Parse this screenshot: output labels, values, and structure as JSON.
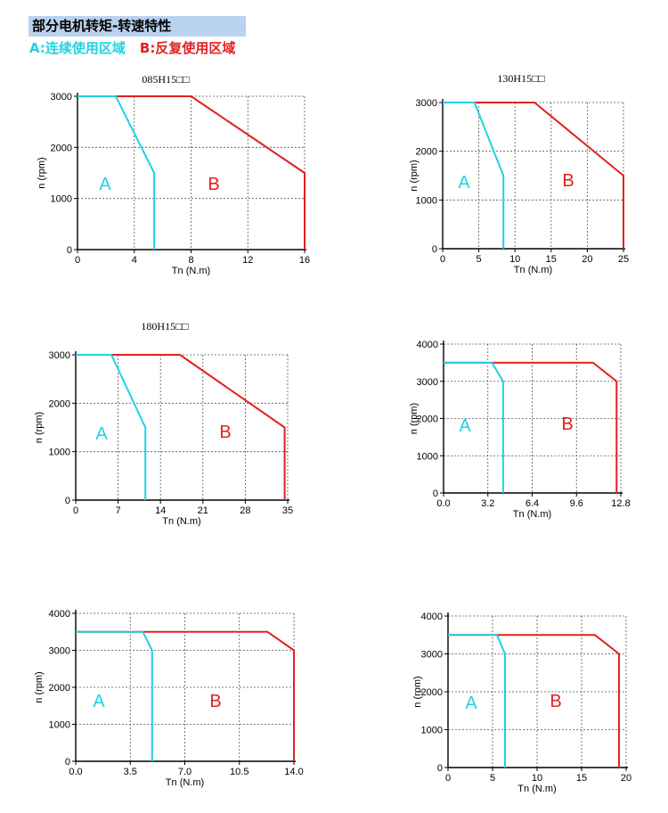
{
  "header": {
    "title": "部分电机转矩-转速特性",
    "legend_a": "A:连续使用区域",
    "legend_b": "B:反复使用区域"
  },
  "colors": {
    "region_a": "#1ed3e3",
    "region_b": "#e32020",
    "grid": "#555555",
    "title_bg": "#b9d2ee"
  },
  "chart_data": [
    {
      "type": "line",
      "title": "085H15□□",
      "xlabel": "Tn (N.m)",
      "ylabel": "n (rpm)",
      "xlim": [
        0,
        16
      ],
      "ylim": [
        0,
        3000
      ],
      "xticks": [
        0,
        4,
        8,
        12,
        16
      ],
      "xtick_labels": [
        "0",
        "4",
        "8",
        "12",
        "16"
      ],
      "yticks": [
        0,
        1000,
        2000,
        3000
      ],
      "ytick_labels": [
        "0",
        "1000",
        "2000",
        "3000"
      ],
      "grid": true,
      "region_labels": [
        "A",
        "B"
      ],
      "series": [
        {
          "name": "A",
          "points": [
            [
              0,
              3000
            ],
            [
              2.7,
              3000
            ],
            [
              5.4,
              1500
            ],
            [
              5.4,
              0
            ]
          ]
        },
        {
          "name": "B",
          "points": [
            [
              0,
              3000
            ],
            [
              8.0,
              3000
            ],
            [
              16.0,
              1500
            ],
            [
              16.0,
              0
            ]
          ]
        }
      ]
    },
    {
      "type": "line",
      "title": "130H15□□",
      "xlabel": "Tn (N.m)",
      "ylabel": "n (rpm)",
      "xlim": [
        0,
        25
      ],
      "ylim": [
        0,
        3000
      ],
      "xticks": [
        0,
        5,
        10,
        15,
        20,
        25
      ],
      "xtick_labels": [
        "0",
        "5",
        "10",
        "15",
        "20",
        "25"
      ],
      "yticks": [
        0,
        1000,
        2000,
        3000
      ],
      "ytick_labels": [
        "0",
        "1000",
        "2000",
        "3000"
      ],
      "grid": true,
      "region_labels": [
        "A",
        "B"
      ],
      "series": [
        {
          "name": "A",
          "points": [
            [
              0,
              3000
            ],
            [
              4.4,
              3000
            ],
            [
              8.4,
              1500
            ],
            [
              8.4,
              0
            ]
          ]
        },
        {
          "name": "B",
          "points": [
            [
              0,
              3000
            ],
            [
              12.7,
              3000
            ],
            [
              25.0,
              1500
            ],
            [
              25.0,
              0
            ]
          ]
        }
      ]
    },
    {
      "type": "line",
      "title": "180H15□□",
      "xlabel": "Tn (N.m)",
      "ylabel": "n (rpm)",
      "xlim": [
        0,
        35
      ],
      "ylim": [
        0,
        3000
      ],
      "xticks": [
        0,
        7,
        14,
        21,
        28,
        35
      ],
      "xtick_labels": [
        "0",
        "7",
        "14",
        "21",
        "28",
        "35"
      ],
      "yticks": [
        0,
        1000,
        2000,
        3000
      ],
      "ytick_labels": [
        "0",
        "1000",
        "2000",
        "3000"
      ],
      "grid": true,
      "region_labels": [
        "A",
        "B"
      ],
      "series": [
        {
          "name": "A",
          "points": [
            [
              0,
              3000
            ],
            [
              5.9,
              3000
            ],
            [
              11.5,
              1500
            ],
            [
              11.5,
              0
            ]
          ]
        },
        {
          "name": "B",
          "points": [
            [
              0,
              3000
            ],
            [
              17.2,
              3000
            ],
            [
              34.5,
              1500
            ],
            [
              34.5,
              0
            ]
          ]
        }
      ]
    },
    {
      "type": "line",
      "title": "",
      "xlabel": "Tn (N.m)",
      "ylabel": "n (rpm)",
      "xlim": [
        0,
        12.8
      ],
      "ylim": [
        0,
        4000
      ],
      "xticks": [
        0,
        3.2,
        6.4,
        9.6,
        12.8
      ],
      "xtick_labels": [
        "0.0",
        "3.2",
        "6.4",
        "9.6",
        "12.8"
      ],
      "yticks": [
        0,
        1000,
        2000,
        3000,
        4000
      ],
      "ytick_labels": [
        "0",
        "1000",
        "2000",
        "3000",
        "4000"
      ],
      "grid": true,
      "region_labels": [
        "A",
        "B"
      ],
      "series": [
        {
          "name": "A",
          "points": [
            [
              0,
              3500
            ],
            [
              3.5,
              3500
            ],
            [
              4.3,
              3000
            ],
            [
              4.3,
              0
            ]
          ]
        },
        {
          "name": "B",
          "points": [
            [
              0,
              3500
            ],
            [
              10.8,
              3500
            ],
            [
              12.5,
              3000
            ],
            [
              12.5,
              0
            ]
          ]
        }
      ]
    },
    {
      "type": "line",
      "title": "",
      "xlabel": "Tn (N.m)",
      "ylabel": "n (rpm)",
      "xlim": [
        0,
        14.0
      ],
      "ylim": [
        0,
        4000
      ],
      "xticks": [
        0,
        3.5,
        7.0,
        10.5,
        14.0
      ],
      "xtick_labels": [
        "0.0",
        "3.5",
        "7.0",
        "10.5",
        "14.0"
      ],
      "yticks": [
        0,
        1000,
        2000,
        3000,
        4000
      ],
      "ytick_labels": [
        "0",
        "1000",
        "2000",
        "3000",
        "4000"
      ],
      "grid": true,
      "region_labels": [
        "A",
        "B"
      ],
      "series": [
        {
          "name": "A",
          "points": [
            [
              0,
              3500
            ],
            [
              4.3,
              3500
            ],
            [
              4.9,
              3000
            ],
            [
              4.9,
              0
            ]
          ]
        },
        {
          "name": "B",
          "points": [
            [
              0,
              3500
            ],
            [
              12.3,
              3500
            ],
            [
              14.0,
              3000
            ],
            [
              14.0,
              0
            ]
          ]
        }
      ]
    },
    {
      "type": "line",
      "title": "",
      "xlabel": "Tn (N.m)",
      "ylabel": "n (rpm)",
      "xlim": [
        0,
        20
      ],
      "ylim": [
        0,
        4000
      ],
      "xticks": [
        0,
        5,
        10,
        15,
        20
      ],
      "xtick_labels": [
        "0",
        "5",
        "10",
        "15",
        "20"
      ],
      "yticks": [
        0,
        1000,
        2000,
        3000,
        4000
      ],
      "ytick_labels": [
        "0",
        "1000",
        "2000",
        "3000",
        "4000"
      ],
      "grid": true,
      "region_labels": [
        "A",
        "B"
      ],
      "series": [
        {
          "name": "A",
          "points": [
            [
              0,
              3500
            ],
            [
              5.5,
              3500
            ],
            [
              6.4,
              3000
            ],
            [
              6.4,
              0
            ]
          ]
        },
        {
          "name": "B",
          "points": [
            [
              0,
              3500
            ],
            [
              16.5,
              3500
            ],
            [
              19.2,
              3000
            ],
            [
              19.2,
              0
            ]
          ]
        }
      ]
    }
  ]
}
